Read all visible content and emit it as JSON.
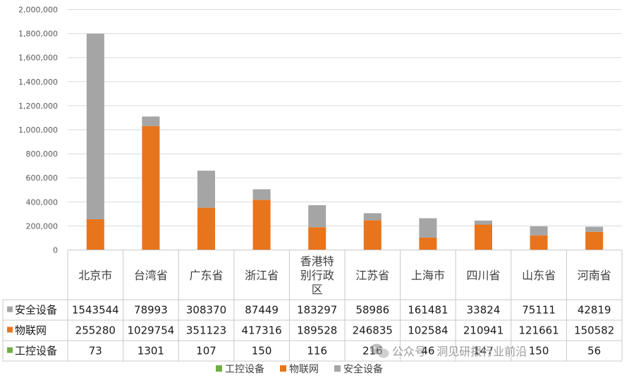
{
  "chart_data": {
    "type": "bar",
    "stacked": true,
    "categories": [
      "北京市",
      "台湾省",
      "广东省",
      "浙江省",
      "香港特别行政区",
      "江苏省",
      "上海市",
      "四川省",
      "山东省",
      "河南省"
    ],
    "series": [
      {
        "name": "工控设备",
        "color": "#70ad47",
        "values": [
          73,
          1301,
          107,
          150,
          116,
          216,
          46,
          147,
          150,
          56
        ]
      },
      {
        "name": "物联网",
        "color": "#e8741c",
        "values": [
          255280,
          1029754,
          351123,
          417316,
          189528,
          246835,
          102584,
          210941,
          121661,
          150582
        ]
      },
      {
        "name": "安全设备",
        "color": "#a5a5a5",
        "values": [
          1543544,
          78993,
          308370,
          87449,
          183297,
          58986,
          161481,
          33824,
          75111,
          42819
        ]
      }
    ],
    "table_row_order": [
      "安全设备",
      "物联网",
      "工控设备"
    ],
    "y_ticks": [
      "0",
      "200,000",
      "400,000",
      "600,000",
      "800,000",
      "1,000,000",
      "1,200,000",
      "1,400,000",
      "1,600,000",
      "1,800,000",
      "2,000,000"
    ],
    "ylim": [
      0,
      2000000
    ],
    "grid": true,
    "legend_position": "bottom",
    "data_table": true
  },
  "watermark": {
    "text": "公众号 · 洞见研报行业前沿",
    "icon": "wechat-icon"
  }
}
